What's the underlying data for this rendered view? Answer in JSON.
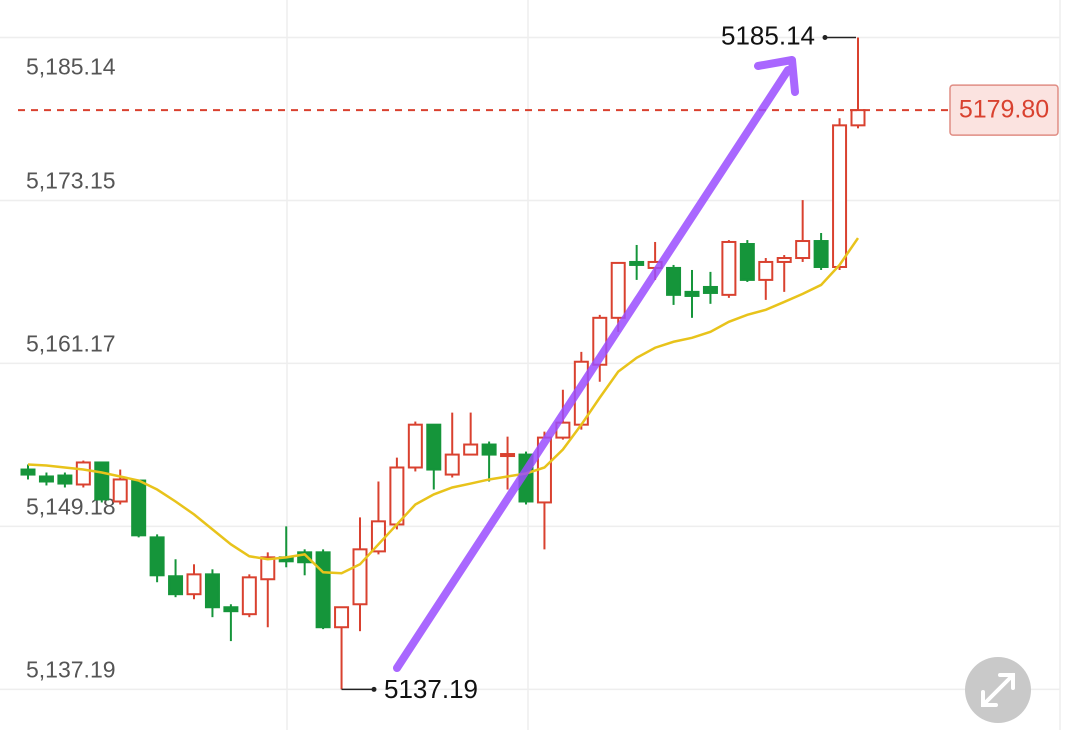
{
  "chart_data": {
    "type": "candlestick",
    "ylim": [
      5134.2,
      5187.9
    ],
    "yticks": [
      {
        "value": 5137.19,
        "label": "5,137.19"
      },
      {
        "value": 5149.18,
        "label": "5,149.18"
      },
      {
        "value": 5161.17,
        "label": "5,161.17"
      },
      {
        "value": 5173.15,
        "label": "5,173.15"
      },
      {
        "value": 5185.14,
        "label": "5,185.14"
      }
    ],
    "grid": true,
    "up_color": "#d9412f",
    "down_color": "#15953a",
    "line_color": "#e8c31b",
    "open": [
      5153.36,
      5152.85,
      5152.92,
      5152.26,
      5153.88,
      5151.01,
      5152.55,
      5148.37,
      5145.51,
      5144.19,
      5145.65,
      5143.23,
      5142.72,
      5145.29,
      5146.9,
      5147.27,
      5147.27,
      5141.76,
      5143.45,
      5147.34,
      5149.32,
      5153.51,
      5156.66,
      5152.99,
      5154.46,
      5155.2,
      5154.46,
      5154.46,
      5150.94,
      5155.71,
      5156.66,
      5161.07,
      5164.52,
      5168.63,
      5168.19,
      5168.19,
      5166.43,
      5166.79,
      5166.21,
      5169.95,
      5167.31,
      5168.63,
      5168.92,
      5170.17,
      5168.26,
      5178.68
    ],
    "high": [
      5153.73,
      5153.14,
      5153.14,
      5154.02,
      5153.95,
      5153.36,
      5152.63,
      5148.59,
      5146.76,
      5146.39,
      5146.02,
      5143.45,
      5145.65,
      5147.27,
      5149.18,
      5147.49,
      5147.49,
      5143.23,
      5149.84,
      5152.48,
      5154.24,
      5156.89,
      5156.66,
      5157.55,
      5157.55,
      5155.42,
      5155.78,
      5154.68,
      5156.15,
      5159.23,
      5162.02,
      5164.74,
      5168.63,
      5169.88,
      5170.1,
      5168.41,
      5168.04,
      5167.9,
      5170.24,
      5170.24,
      5168.92,
      5169.14,
      5173.18,
      5170.76,
      5179.2,
      5185.14
    ],
    "low": [
      5152.63,
      5152.19,
      5152.04,
      5152.04,
      5150.94,
      5150.79,
      5148.37,
      5145.07,
      5143.97,
      5143.82,
      5142.5,
      5140.74,
      5142.5,
      5141.76,
      5146.17,
      5145.58,
      5141.62,
      5137.19,
      5141.47,
      5147.12,
      5148.96,
      5153.22,
      5151.89,
      5152.77,
      5154.46,
      5152.48,
      5151.89,
      5150.79,
      5147.49,
      5155.56,
      5156.3,
      5159.82,
      5163.49,
      5167.31,
      5167.31,
      5165.47,
      5164.52,
      5165.55,
      5165.99,
      5167.16,
      5165.84,
      5166.43,
      5168.63,
      5168.04,
      5168.04,
      5178.46
    ],
    "close": [
      5152.99,
      5152.48,
      5152.33,
      5153.88,
      5151.16,
      5152.63,
      5148.52,
      5145.58,
      5144.19,
      5145.65,
      5143.23,
      5142.94,
      5145.43,
      5146.9,
      5146.61,
      5146.54,
      5141.76,
      5143.23,
      5147.49,
      5149.55,
      5153.51,
      5156.66,
      5153.36,
      5154.46,
      5155.2,
      5154.46,
      5154.5,
      5151.01,
      5155.71,
      5156.81,
      5161.29,
      5164.52,
      5168.56,
      5168.41,
      5168.63,
      5166.21,
      5166.13,
      5166.35,
      5170.1,
      5167.31,
      5168.63,
      5168.92,
      5170.17,
      5168.26,
      5178.68,
      5179.8
    ],
    "line": [
      5153.73,
      5153.66,
      5153.51,
      5153.36,
      5153.14,
      5152.85,
      5152.55,
      5151.89,
      5151.01,
      5150.06,
      5148.96,
      5147.86,
      5146.98,
      5146.76,
      5146.9,
      5147.12,
      5145.8,
      5145.73,
      5146.39,
      5147.86,
      5149.32,
      5150.79,
      5151.53,
      5152.04,
      5152.33,
      5152.63,
      5152.85,
      5153.07,
      5153.51,
      5154.83,
      5156.66,
      5158.65,
      5160.56,
      5161.58,
      5162.32,
      5162.76,
      5163.05,
      5163.49,
      5164.23,
      5164.74,
      5165.11,
      5165.69,
      5166.28,
      5166.94,
      5168.41,
      5170.39
    ],
    "max_label": 5185.14,
    "min_label": 5137.19,
    "price_line": {
      "value": 5179.8,
      "label": "5179.80"
    }
  }
}
